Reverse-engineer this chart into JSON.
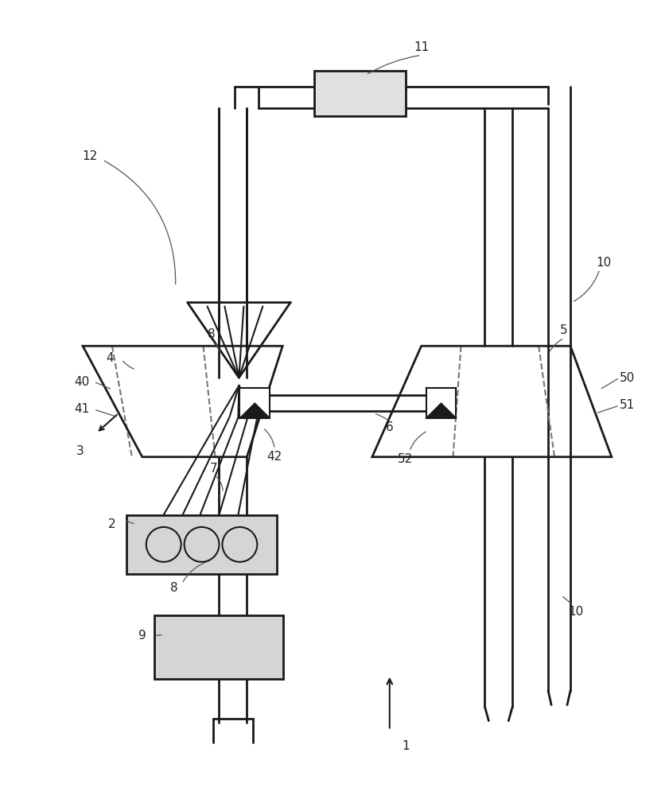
{
  "bg_color": "#ffffff",
  "line_color": "#1a1a1a",
  "fig_width": 8.41,
  "fig_height": 10.0,
  "dpi": 100
}
